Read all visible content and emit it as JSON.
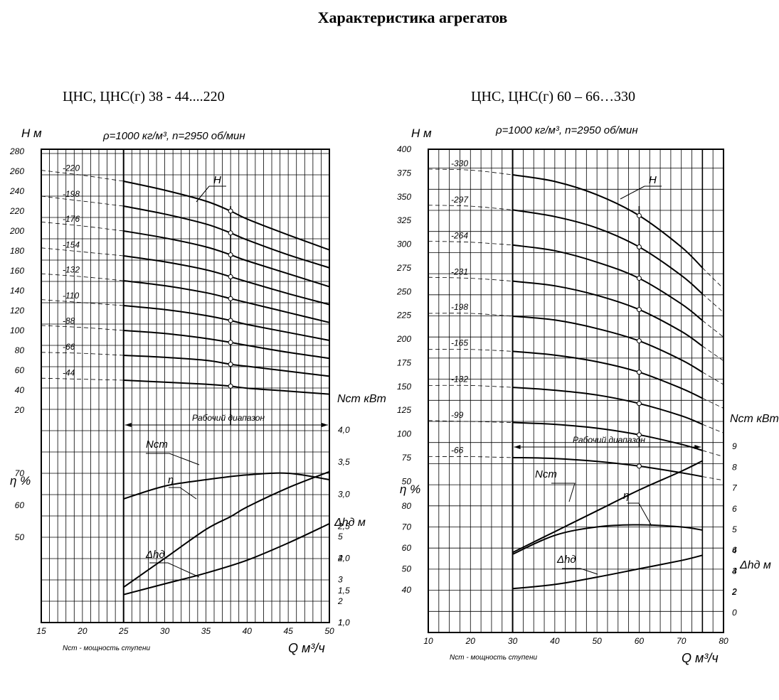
{
  "page": {
    "title": "Характеристика агрегатов"
  },
  "chart_data": [
    {
      "type": "line",
      "title": "ЦНС, ЦНС(г) 38 - 44....220",
      "subtitle": "ρ=1000 кг/м³, n=2950 об/мин",
      "xlabel": "Q м³/ч",
      "x_note": "Nст - мощность ступени",
      "y_label_H": "H м",
      "y_label_eta": "η %",
      "y_label_N": "Nст кВт",
      "y_label_dh": "Δhд м",
      "x_ticks": [
        15,
        20,
        25,
        30,
        35,
        40,
        45,
        50
      ],
      "x_range": [
        15,
        50
      ],
      "H_range": [
        0,
        280
      ],
      "H_ticks": [
        20,
        40,
        60,
        80,
        100,
        120,
        140,
        160,
        180,
        200,
        220,
        240,
        260,
        280
      ],
      "eta_ticks": [
        50,
        60,
        70
      ],
      "N_ticks": [
        "1,0",
        "1,5",
        "2,0",
        "2,5",
        "3,0",
        "3,5",
        "4,0"
      ],
      "dh_ticks": [
        1,
        2,
        3,
        4,
        5
      ],
      "working_range": [
        25,
        50
      ],
      "working_range_label": "Рабочий диапазон",
      "nominal_Q": 38,
      "series": [
        {
          "name": "-44",
          "points": [
            [
              15,
              52
            ],
            [
              20,
              51
            ],
            [
              25,
              50
            ],
            [
              30,
              48
            ],
            [
              35,
              46
            ],
            [
              38,
              44
            ],
            [
              40,
              42
            ],
            [
              45,
              39
            ],
            [
              50,
              36
            ]
          ]
        },
        {
          "name": "-66",
          "points": [
            [
              15,
              78
            ],
            [
              20,
              77
            ],
            [
              25,
              75
            ],
            [
              30,
              73
            ],
            [
              35,
              70
            ],
            [
              38,
              66
            ],
            [
              40,
              64
            ],
            [
              45,
              59
            ],
            [
              50,
              54
            ]
          ]
        },
        {
          "name": "-88",
          "points": [
            [
              15,
              105
            ],
            [
              20,
              103
            ],
            [
              25,
              100
            ],
            [
              30,
              97
            ],
            [
              35,
              92
            ],
            [
              38,
              88
            ],
            [
              40,
              85
            ],
            [
              45,
              78
            ],
            [
              50,
              72
            ]
          ]
        },
        {
          "name": "-110",
          "points": [
            [
              15,
              131
            ],
            [
              20,
              128
            ],
            [
              25,
              125
            ],
            [
              30,
              121
            ],
            [
              35,
              115
            ],
            [
              38,
              110
            ],
            [
              40,
              106
            ],
            [
              45,
              98
            ],
            [
              50,
              90
            ]
          ]
        },
        {
          "name": "-132",
          "points": [
            [
              15,
              157
            ],
            [
              20,
              154
            ],
            [
              25,
              150
            ],
            [
              30,
              145
            ],
            [
              35,
              138
            ],
            [
              38,
              132
            ],
            [
              40,
              128
            ],
            [
              45,
              118
            ],
            [
              50,
              108
            ]
          ]
        },
        {
          "name": "-154",
          "points": [
            [
              15,
              183
            ],
            [
              20,
              179
            ],
            [
              25,
              175
            ],
            [
              30,
              169
            ],
            [
              35,
              161
            ],
            [
              38,
              154
            ],
            [
              40,
              149
            ],
            [
              45,
              137
            ],
            [
              50,
              126
            ]
          ]
        },
        {
          "name": "-176",
          "points": [
            [
              15,
              209
            ],
            [
              20,
              205
            ],
            [
              25,
              200
            ],
            [
              30,
              193
            ],
            [
              35,
              184
            ],
            [
              38,
              176
            ],
            [
              40,
              170
            ],
            [
              45,
              157
            ],
            [
              50,
              144
            ]
          ]
        },
        {
          "name": "-198",
          "points": [
            [
              15,
              235
            ],
            [
              20,
              230
            ],
            [
              25,
              225
            ],
            [
              30,
              217
            ],
            [
              35,
              207
            ],
            [
              38,
              198
            ],
            [
              40,
              191
            ],
            [
              45,
              176
            ],
            [
              50,
              163
            ]
          ]
        },
        {
          "name": "-220",
          "points": [
            [
              15,
              261
            ],
            [
              20,
              256
            ],
            [
              25,
              250
            ],
            [
              30,
              241
            ],
            [
              35,
              230
            ],
            [
              38,
              220
            ],
            [
              40,
              212
            ],
            [
              45,
              196
            ],
            [
              50,
              181
            ]
          ]
        }
      ],
      "H_label": "H",
      "N_curve": {
        "name": "Nст",
        "points": [
          [
            25,
            1.55
          ],
          [
            30,
            2.0
          ],
          [
            35,
            2.45
          ],
          [
            38,
            2.65
          ],
          [
            40,
            2.8
          ],
          [
            45,
            3.1
          ],
          [
            50,
            3.35
          ]
        ]
      },
      "eta_curve": {
        "name": "η",
        "points": [
          [
            25,
            62
          ],
          [
            30,
            66
          ],
          [
            35,
            68
          ],
          [
            40,
            69.5
          ],
          [
            45,
            70
          ],
          [
            50,
            68
          ]
        ]
      },
      "dh_curve": {
        "name": "Δhд",
        "points": [
          [
            25,
            2.3
          ],
          [
            30,
            2.8
          ],
          [
            35,
            3.3
          ],
          [
            40,
            3.9
          ],
          [
            45,
            4.7
          ],
          [
            50,
            5.6
          ]
        ]
      }
    },
    {
      "type": "line",
      "title": "ЦНС, ЦНС(г) 60 – 66…330",
      "subtitle": "ρ=1000 кг/м³, n=2950 об/мин",
      "xlabel": "Q м³/ч",
      "x_note": "Nст - мощность ступени",
      "y_label_H": "H м",
      "y_label_eta": "η %",
      "y_label_N": "Nст кВт",
      "y_label_dh": "Δhд м",
      "x_ticks": [
        10,
        20,
        30,
        40,
        50,
        60,
        70,
        80
      ],
      "x_range": [
        10,
        80
      ],
      "H_range": [
        0,
        400
      ],
      "H_ticks": [
        50,
        75,
        100,
        125,
        150,
        175,
        200,
        225,
        250,
        275,
        300,
        325,
        350,
        375,
        400
      ],
      "eta_ticks": [
        40,
        50,
        60,
        70,
        80
      ],
      "N_ticks": [
        2,
        3,
        4,
        5,
        6,
        7,
        8,
        9
      ],
      "dh_ticks": [
        0,
        2,
        4,
        6
      ],
      "working_range": [
        30,
        75
      ],
      "working_range_label": "Рабочий диапазон",
      "nominal_Q": 60,
      "series": [
        {
          "name": "-66",
          "points": [
            [
              10,
              76
            ],
            [
              20,
              76
            ],
            [
              30,
              75
            ],
            [
              40,
              74
            ],
            [
              50,
              71
            ],
            [
              60,
              66
            ],
            [
              70,
              59
            ],
            [
              80,
              51
            ]
          ]
        },
        {
          "name": "-99",
          "points": [
            [
              10,
              114
            ],
            [
              20,
              113
            ],
            [
              30,
              112
            ],
            [
              40,
              110
            ],
            [
              50,
              106
            ],
            [
              60,
              99
            ],
            [
              70,
              89
            ],
            [
              80,
              76
            ]
          ]
        },
        {
          "name": "-132",
          "points": [
            [
              10,
              151
            ],
            [
              20,
              151
            ],
            [
              30,
              149
            ],
            [
              40,
              146
            ],
            [
              50,
              141
            ],
            [
              60,
              132
            ],
            [
              70,
              119
            ],
            [
              80,
              101
            ]
          ]
        },
        {
          "name": "-165",
          "points": [
            [
              10,
              189
            ],
            [
              20,
              189
            ],
            [
              30,
              187
            ],
            [
              40,
              183
            ],
            [
              50,
              176
            ],
            [
              60,
              165
            ],
            [
              70,
              148
            ],
            [
              80,
              127
            ]
          ]
        },
        {
          "name": "-198",
          "points": [
            [
              10,
              227
            ],
            [
              20,
              227
            ],
            [
              30,
              224
            ],
            [
              40,
              220
            ],
            [
              50,
              211
            ],
            [
              60,
              198
            ],
            [
              70,
              178
            ],
            [
              80,
              152
            ]
          ]
        },
        {
          "name": "-231",
          "points": [
            [
              10,
              265
            ],
            [
              20,
              264
            ],
            [
              30,
              261
            ],
            [
              40,
              256
            ],
            [
              50,
              246
            ],
            [
              60,
              231
            ],
            [
              70,
              208
            ],
            [
              80,
              177
            ]
          ]
        },
        {
          "name": "-264",
          "points": [
            [
              10,
              303
            ],
            [
              20,
              302
            ],
            [
              30,
              299
            ],
            [
              40,
              293
            ],
            [
              50,
              281
            ],
            [
              60,
              264
            ],
            [
              70,
              237
            ],
            [
              80,
              202
            ]
          ]
        },
        {
          "name": "-297",
          "points": [
            [
              10,
              341
            ],
            [
              20,
              340
            ],
            [
              30,
              336
            ],
            [
              40,
              329
            ],
            [
              50,
              317
            ],
            [
              60,
              297
            ],
            [
              70,
              267
            ],
            [
              80,
              228
            ]
          ]
        },
        {
          "name": "-330",
          "points": [
            [
              10,
              379
            ],
            [
              20,
              378
            ],
            [
              30,
              373
            ],
            [
              40,
              366
            ],
            [
              50,
              352
            ],
            [
              60,
              330
            ],
            [
              70,
              297
            ],
            [
              80,
              253
            ]
          ]
        }
      ],
      "H_label": "H",
      "N_curve": {
        "name": "Nст",
        "points": [
          [
            30,
            3.9
          ],
          [
            40,
            4.9
          ],
          [
            50,
            5.9
          ],
          [
            60,
            6.9
          ],
          [
            70,
            7.8
          ],
          [
            75,
            8.3
          ]
        ]
      },
      "eta_curve": {
        "name": "η",
        "points": [
          [
            30,
            57
          ],
          [
            40,
            66
          ],
          [
            50,
            70
          ],
          [
            60,
            71
          ],
          [
            70,
            70
          ],
          [
            75,
            68.5
          ]
        ]
      },
      "dh_curve": {
        "name": "Δhд",
        "points": [
          [
            30,
            2.3
          ],
          [
            40,
            2.7
          ],
          [
            50,
            3.4
          ],
          [
            60,
            4.2
          ],
          [
            70,
            5.0
          ],
          [
            75,
            5.5
          ]
        ]
      }
    }
  ]
}
